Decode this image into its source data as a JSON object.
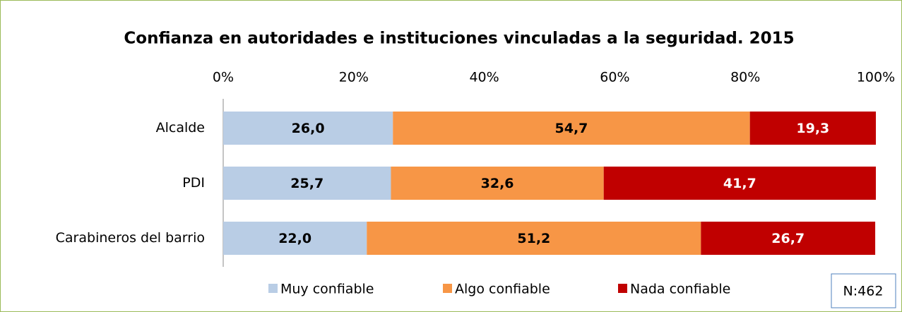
{
  "chart_data": {
    "type": "stacked_bar_horizontal",
    "title": "Confianza en autoridades e instituciones vinculadas a la seguridad. 2015",
    "categories": [
      "Alcalde",
      "PDI",
      "Carabineros del barrio"
    ],
    "series": [
      {
        "name": "Muy confiable",
        "color": "#b9cde5",
        "values": [
          26.0,
          25.7,
          22.0
        ],
        "value_labels": [
          "26,0",
          "25,7",
          "22,0"
        ]
      },
      {
        "name": "Algo confiable",
        "color": "#f79646",
        "values": [
          54.7,
          32.6,
          51.2
        ],
        "value_labels": [
          "54,7",
          "32,6",
          "51,2"
        ]
      },
      {
        "name": "Nada confiable",
        "color": "#c00000",
        "values": [
          19.3,
          41.7,
          26.7
        ],
        "value_labels": [
          "19,3",
          "41,7",
          "26,7"
        ]
      }
    ],
    "xlim": [
      0,
      100
    ],
    "xticks": [
      {
        "value": 0,
        "label": "0%"
      },
      {
        "value": 20,
        "label": "20%"
      },
      {
        "value": 40,
        "label": "40%"
      },
      {
        "value": 60,
        "label": "60%"
      },
      {
        "value": 80,
        "label": "80%"
      },
      {
        "value": 100,
        "label": "100%"
      }
    ],
    "grid": false,
    "legend": "bottom",
    "annotation": "N:462"
  }
}
